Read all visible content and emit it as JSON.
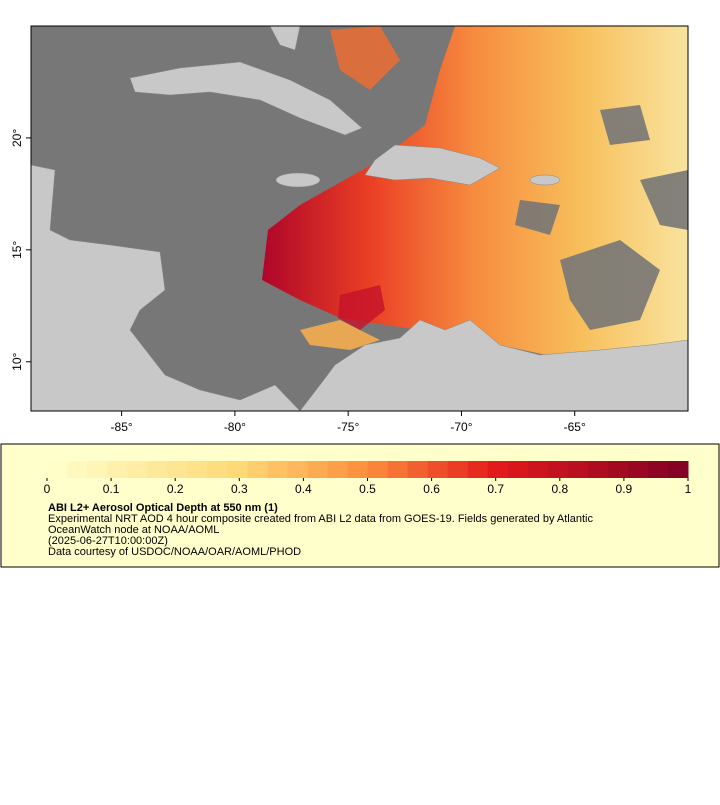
{
  "map": {
    "xlim": [
      -89,
      -60
    ],
    "ylim": [
      7.8,
      25
    ],
    "xticks": [
      {
        "value": -85,
        "label": "-85°"
      },
      {
        "value": -80,
        "label": "-80°"
      },
      {
        "value": -75,
        "label": "-75°"
      },
      {
        "value": -70,
        "label": "-70°"
      },
      {
        "value": -65,
        "label": "-65°"
      }
    ],
    "yticks": [
      {
        "value": 10,
        "label": "10°"
      },
      {
        "value": 15,
        "label": "15°"
      },
      {
        "value": 20,
        "label": "20°"
      }
    ]
  },
  "colorbar": {
    "lim": [
      0,
      1
    ],
    "ticks": [
      0,
      0.1,
      0.2,
      0.3,
      0.4,
      0.5,
      0.6,
      0.7,
      0.8,
      0.9,
      1
    ]
  },
  "caption": {
    "title": "ABI L2+ Aerosol Optical Depth at 550 nm (1)",
    "lines": [
      "Experimental NRT AOD 4 hour composite created from ABI L2 data from GOES-19. Fields generated by Atlantic",
      "OceanWatch node at NOAA/AOML",
      "(2025-06-27T10:00:00Z)",
      "Data courtesy of USDOC/NOAA/OAR/AOML/PHOD"
    ]
  }
}
